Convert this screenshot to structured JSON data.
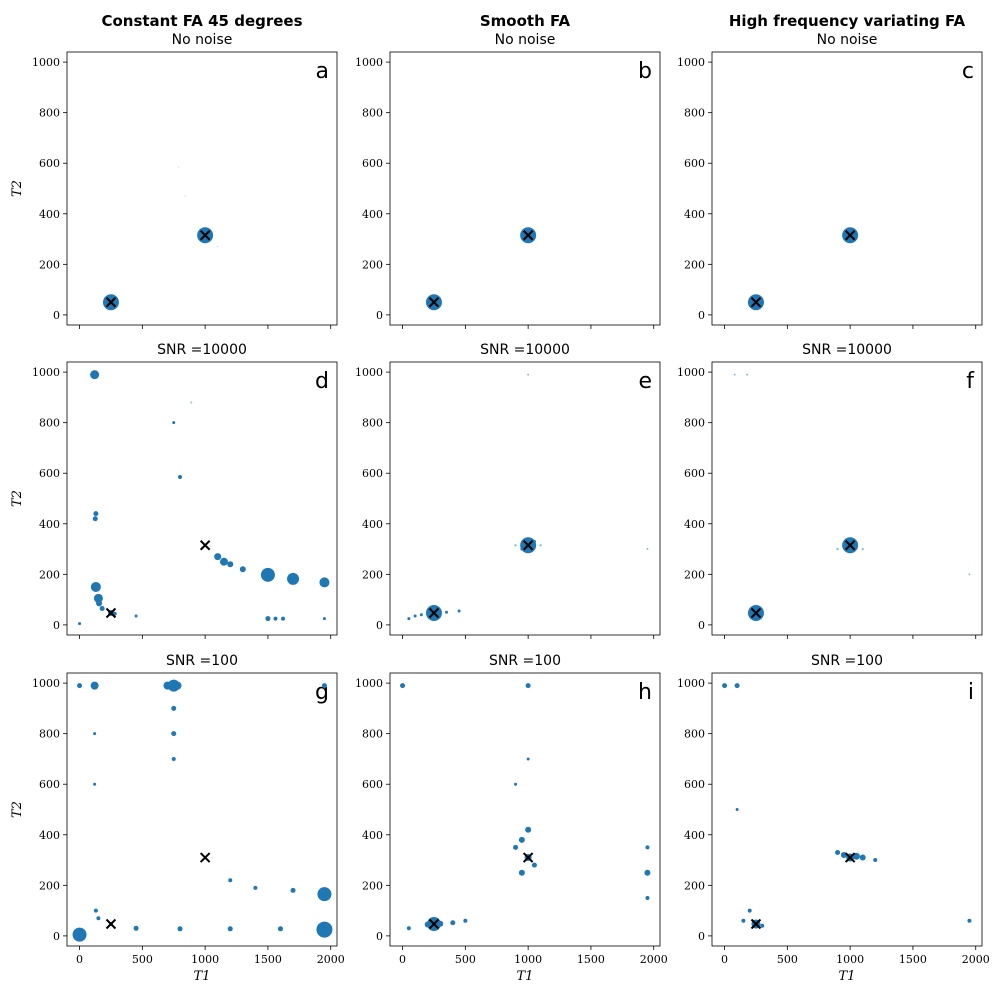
{
  "chart_data": {
    "type": "scatter",
    "figure_title": "",
    "columns": [
      "Constant FA 45 degrees",
      "Smooth FA",
      "High frequency variating FA"
    ],
    "rows": [
      "No noise",
      "SNR =10000",
      "SNR =100"
    ],
    "xlabel": "T_1",
    "ylabel": "T_2",
    "xlim": [
      -100,
      2050
    ],
    "ylim": [
      -40,
      1040
    ],
    "xticks": [
      0,
      500,
      1000,
      1500,
      2000
    ],
    "yticks": [
      0,
      200,
      400,
      600,
      800,
      1000
    ],
    "marker_color": "#1f77b4",
    "truth_color": "#000000",
    "ground_truth": [
      {
        "x": 250,
        "y": 50
      },
      {
        "x": 1000,
        "y": 315
      }
    ],
    "panels": [
      {
        "id": "a",
        "letter": "a",
        "column_title": "Constant FA 45 degrees",
        "subtitle": "No noise",
        "show_ylabel": true,
        "show_xlabel": false,
        "points": [
          {
            "x": 250,
            "y": 50,
            "s": 8
          },
          {
            "x": 1000,
            "y": 315,
            "s": 8
          },
          {
            "x": 790,
            "y": 585,
            "s": 0.5
          },
          {
            "x": 840,
            "y": 470,
            "s": 0.5
          },
          {
            "x": 1100,
            "y": 270,
            "s": 0.5
          }
        ],
        "truth": [
          {
            "x": 250,
            "y": 50
          },
          {
            "x": 1000,
            "y": 315
          }
        ]
      },
      {
        "id": "b",
        "letter": "b",
        "column_title": "Smooth FA",
        "subtitle": "No noise",
        "show_ylabel": false,
        "show_xlabel": false,
        "points": [
          {
            "x": 250,
            "y": 50,
            "s": 8
          },
          {
            "x": 1000,
            "y": 315,
            "s": 8
          }
        ],
        "truth": [
          {
            "x": 250,
            "y": 50
          },
          {
            "x": 1000,
            "y": 315
          }
        ]
      },
      {
        "id": "c",
        "letter": "c",
        "column_title": "High frequency variating FA",
        "subtitle": "No noise",
        "show_ylabel": false,
        "show_xlabel": false,
        "points": [
          {
            "x": 250,
            "y": 50,
            "s": 8
          },
          {
            "x": 1000,
            "y": 315,
            "s": 8
          }
        ],
        "truth": [
          {
            "x": 250,
            "y": 50
          },
          {
            "x": 1000,
            "y": 315
          }
        ]
      },
      {
        "id": "d",
        "letter": "d",
        "column_title": "",
        "subtitle": "SNR =10000",
        "show_ylabel": true,
        "show_xlabel": false,
        "points": [
          {
            "x": 120,
            "y": 990,
            "s": 4.5
          },
          {
            "x": 130,
            "y": 150,
            "s": 5
          },
          {
            "x": 150,
            "y": 105,
            "s": 4.5
          },
          {
            "x": 130,
            "y": 440,
            "s": 2.5
          },
          {
            "x": 125,
            "y": 420,
            "s": 2.5
          },
          {
            "x": 155,
            "y": 85,
            "s": 3
          },
          {
            "x": 180,
            "y": 65,
            "s": 2.5
          },
          {
            "x": 250,
            "y": 47,
            "s": 3
          },
          {
            "x": 280,
            "y": 44,
            "s": 2
          },
          {
            "x": 750,
            "y": 800,
            "s": 1.5
          },
          {
            "x": 800,
            "y": 585,
            "s": 2
          },
          {
            "x": 1000,
            "y": 315,
            "s": 1.5
          },
          {
            "x": 1100,
            "y": 270,
            "s": 3.5
          },
          {
            "x": 1150,
            "y": 250,
            "s": 4
          },
          {
            "x": 1200,
            "y": 240,
            "s": 3
          },
          {
            "x": 1300,
            "y": 220,
            "s": 3
          },
          {
            "x": 1500,
            "y": 198,
            "s": 7
          },
          {
            "x": 1700,
            "y": 182,
            "s": 6
          },
          {
            "x": 1950,
            "y": 168,
            "s": 5
          },
          {
            "x": 1500,
            "y": 25,
            "s": 2.5
          },
          {
            "x": 1560,
            "y": 25,
            "s": 2
          },
          {
            "x": 1620,
            "y": 25,
            "s": 2
          },
          {
            "x": 1950,
            "y": 25,
            "s": 1.5
          },
          {
            "x": 0,
            "y": 5,
            "s": 1.5
          },
          {
            "x": 450,
            "y": 35,
            "s": 1.5
          },
          {
            "x": 890,
            "y": 880,
            "s": 1
          }
        ],
        "truth": [
          {
            "x": 250,
            "y": 47
          },
          {
            "x": 1000,
            "y": 315
          }
        ]
      },
      {
        "id": "e",
        "letter": "e",
        "column_title": "",
        "subtitle": "SNR =10000",
        "show_ylabel": false,
        "show_xlabel": false,
        "points": [
          {
            "x": 250,
            "y": 47,
            "s": 8
          },
          {
            "x": 1000,
            "y": 315,
            "s": 8
          },
          {
            "x": 50,
            "y": 25,
            "s": 1.5
          },
          {
            "x": 100,
            "y": 35,
            "s": 1.5
          },
          {
            "x": 150,
            "y": 40,
            "s": 1.5
          },
          {
            "x": 350,
            "y": 50,
            "s": 1.5
          },
          {
            "x": 450,
            "y": 55,
            "s": 1.5
          },
          {
            "x": 950,
            "y": 300,
            "s": 1.5
          },
          {
            "x": 1050,
            "y": 330,
            "s": 1.5
          },
          {
            "x": 1100,
            "y": 315,
            "s": 1.2
          },
          {
            "x": 900,
            "y": 315,
            "s": 1.2
          },
          {
            "x": 1950,
            "y": 300,
            "s": 1
          },
          {
            "x": 1000,
            "y": 990,
            "s": 1
          }
        ],
        "truth": [
          {
            "x": 250,
            "y": 47
          },
          {
            "x": 1000,
            "y": 315
          }
        ]
      },
      {
        "id": "f",
        "letter": "f",
        "column_title": "",
        "subtitle": "SNR =10000",
        "show_ylabel": false,
        "show_xlabel": false,
        "points": [
          {
            "x": 250,
            "y": 47,
            "s": 8
          },
          {
            "x": 1000,
            "y": 315,
            "s": 8
          },
          {
            "x": 900,
            "y": 300,
            "s": 1.2
          },
          {
            "x": 1100,
            "y": 300,
            "s": 1.2
          },
          {
            "x": 80,
            "y": 990,
            "s": 1
          },
          {
            "x": 180,
            "y": 990,
            "s": 1
          },
          {
            "x": 1950,
            "y": 200,
            "s": 1
          }
        ],
        "truth": [
          {
            "x": 250,
            "y": 47
          },
          {
            "x": 1000,
            "y": 315
          }
        ]
      },
      {
        "id": "g",
        "letter": "g",
        "column_title": "",
        "subtitle": "SNR =100",
        "show_ylabel": true,
        "show_xlabel": true,
        "points": [
          {
            "x": 0,
            "y": 5,
            "s": 7
          },
          {
            "x": 0,
            "y": 990,
            "s": 2.5
          },
          {
            "x": 120,
            "y": 990,
            "s": 4
          },
          {
            "x": 700,
            "y": 990,
            "s": 4
          },
          {
            "x": 750,
            "y": 990,
            "s": 6
          },
          {
            "x": 780,
            "y": 990,
            "s": 4
          },
          {
            "x": 750,
            "y": 900,
            "s": 2.5
          },
          {
            "x": 750,
            "y": 800,
            "s": 2.5
          },
          {
            "x": 750,
            "y": 700,
            "s": 2
          },
          {
            "x": 130,
            "y": 100,
            "s": 2
          },
          {
            "x": 150,
            "y": 70,
            "s": 2
          },
          {
            "x": 250,
            "y": 47,
            "s": 2
          },
          {
            "x": 450,
            "y": 30,
            "s": 2.5
          },
          {
            "x": 800,
            "y": 28,
            "s": 2.5
          },
          {
            "x": 1200,
            "y": 28,
            "s": 2.5
          },
          {
            "x": 1600,
            "y": 28,
            "s": 2.5
          },
          {
            "x": 1950,
            "y": 25,
            "s": 8
          },
          {
            "x": 1950,
            "y": 165,
            "s": 7
          },
          {
            "x": 1700,
            "y": 180,
            "s": 2.5
          },
          {
            "x": 1400,
            "y": 190,
            "s": 2
          },
          {
            "x": 1200,
            "y": 220,
            "s": 2
          },
          {
            "x": 1000,
            "y": 310,
            "s": 1.5
          },
          {
            "x": 120,
            "y": 600,
            "s": 1.5
          },
          {
            "x": 120,
            "y": 800,
            "s": 1.5
          },
          {
            "x": 1950,
            "y": 990,
            "s": 2.5
          }
        ],
        "truth": [
          {
            "x": 250,
            "y": 47
          },
          {
            "x": 1000,
            "y": 310
          }
        ]
      },
      {
        "id": "h",
        "letter": "h",
        "column_title": "",
        "subtitle": "SNR =100",
        "show_ylabel": false,
        "show_xlabel": true,
        "points": [
          {
            "x": 250,
            "y": 47,
            "s": 7
          },
          {
            "x": 200,
            "y": 45,
            "s": 3
          },
          {
            "x": 300,
            "y": 48,
            "s": 3
          },
          {
            "x": 400,
            "y": 52,
            "s": 2.5
          },
          {
            "x": 500,
            "y": 60,
            "s": 2
          },
          {
            "x": 50,
            "y": 30,
            "s": 2
          },
          {
            "x": 1000,
            "y": 310,
            "s": 3.5
          },
          {
            "x": 950,
            "y": 380,
            "s": 3
          },
          {
            "x": 1000,
            "y": 420,
            "s": 3
          },
          {
            "x": 950,
            "y": 250,
            "s": 3
          },
          {
            "x": 1050,
            "y": 280,
            "s": 2.5
          },
          {
            "x": 900,
            "y": 350,
            "s": 2.5
          },
          {
            "x": 1950,
            "y": 250,
            "s": 3
          },
          {
            "x": 1950,
            "y": 350,
            "s": 2
          },
          {
            "x": 1950,
            "y": 150,
            "s": 2
          },
          {
            "x": 1000,
            "y": 990,
            "s": 2.5
          },
          {
            "x": 0,
            "y": 990,
            "s": 2.5
          },
          {
            "x": 900,
            "y": 600,
            "s": 1.5
          },
          {
            "x": 1000,
            "y": 700,
            "s": 1.5
          }
        ],
        "truth": [
          {
            "x": 250,
            "y": 47
          },
          {
            "x": 1000,
            "y": 310
          }
        ]
      },
      {
        "id": "i",
        "letter": "i",
        "column_title": "",
        "subtitle": "SNR =100",
        "show_ylabel": false,
        "show_xlabel": true,
        "points": [
          {
            "x": 250,
            "y": 47,
            "s": 4.5
          },
          {
            "x": 1000,
            "y": 310,
            "s": 4
          },
          {
            "x": 1050,
            "y": 315,
            "s": 3.5
          },
          {
            "x": 1100,
            "y": 310,
            "s": 3
          },
          {
            "x": 950,
            "y": 320,
            "s": 3
          },
          {
            "x": 900,
            "y": 330,
            "s": 2.5
          },
          {
            "x": 1200,
            "y": 300,
            "s": 2
          },
          {
            "x": 100,
            "y": 990,
            "s": 2.5
          },
          {
            "x": 0,
            "y": 990,
            "s": 2.5
          },
          {
            "x": 200,
            "y": 100,
            "s": 2
          },
          {
            "x": 150,
            "y": 60,
            "s": 2
          },
          {
            "x": 300,
            "y": 40,
            "s": 2
          },
          {
            "x": 1950,
            "y": 60,
            "s": 2
          },
          {
            "x": 100,
            "y": 500,
            "s": 1.5
          }
        ],
        "truth": [
          {
            "x": 250,
            "y": 47
          },
          {
            "x": 1000,
            "y": 310
          }
        ]
      }
    ]
  }
}
